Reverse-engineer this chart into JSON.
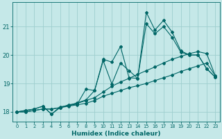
{
  "xlabel": "Humidex (Indice chaleur)",
  "ylabel": "",
  "bg_color": "#c5e8e8",
  "grid_color": "#9ecece",
  "line_color": "#006666",
  "xlim": [
    -0.5,
    23.5
  ],
  "ylim": [
    17.65,
    21.85
  ],
  "yticks": [
    18,
    19,
    20,
    21
  ],
  "xticks": [
    0,
    1,
    2,
    3,
    4,
    5,
    6,
    7,
    8,
    9,
    10,
    11,
    12,
    13,
    14,
    15,
    16,
    17,
    18,
    19,
    20,
    21,
    22,
    23
  ],
  "line1_x": [
    0,
    1,
    2,
    3,
    4,
    5,
    6,
    7,
    8,
    9,
    10,
    11,
    12,
    13,
    14,
    15,
    16,
    17,
    18,
    19,
    20,
    21,
    22,
    23
  ],
  "line1_y": [
    18.0,
    18.0,
    18.05,
    18.1,
    18.1,
    18.15,
    18.2,
    18.25,
    18.3,
    18.4,
    18.55,
    18.65,
    18.75,
    18.85,
    18.92,
    19.0,
    19.1,
    19.2,
    19.3,
    19.42,
    19.52,
    19.62,
    19.72,
    19.27
  ],
  "line2_x": [
    0,
    1,
    2,
    3,
    4,
    5,
    6,
    7,
    8,
    9,
    10,
    11,
    12,
    13,
    14,
    15,
    16,
    17,
    18,
    19,
    20,
    21,
    22,
    23
  ],
  "line2_y": [
    18.0,
    18.0,
    18.05,
    18.1,
    18.1,
    18.15,
    18.25,
    18.3,
    18.4,
    18.5,
    18.7,
    18.9,
    19.05,
    19.18,
    19.32,
    19.45,
    19.58,
    19.72,
    19.85,
    19.95,
    20.05,
    20.12,
    20.05,
    19.27
  ],
  "line3_x": [
    0,
    1,
    2,
    3,
    4,
    5,
    6,
    7,
    8,
    9,
    10,
    11,
    12,
    13,
    14,
    15,
    16,
    17,
    18,
    19,
    20,
    21,
    22,
    23
  ],
  "line3_y": [
    18.0,
    18.05,
    18.1,
    18.2,
    17.92,
    18.18,
    18.22,
    18.32,
    18.42,
    18.75,
    19.85,
    19.75,
    20.3,
    19.2,
    19.18,
    21.1,
    20.75,
    21.0,
    20.62,
    20.1,
    20.0,
    20.0,
    19.52,
    19.22
  ],
  "line4_x": [
    0,
    1,
    2,
    3,
    4,
    5,
    6,
    7,
    8,
    9,
    10,
    11,
    12,
    13,
    14,
    15,
    16,
    17,
    18,
    19,
    20,
    21,
    22,
    23
  ],
  "line4_y": [
    18.0,
    18.05,
    18.1,
    18.2,
    17.92,
    18.15,
    18.22,
    18.28,
    18.8,
    18.75,
    19.8,
    18.98,
    19.72,
    19.45,
    19.18,
    21.5,
    20.88,
    21.22,
    20.8,
    20.15,
    20.0,
    20.0,
    19.52,
    19.22
  ]
}
